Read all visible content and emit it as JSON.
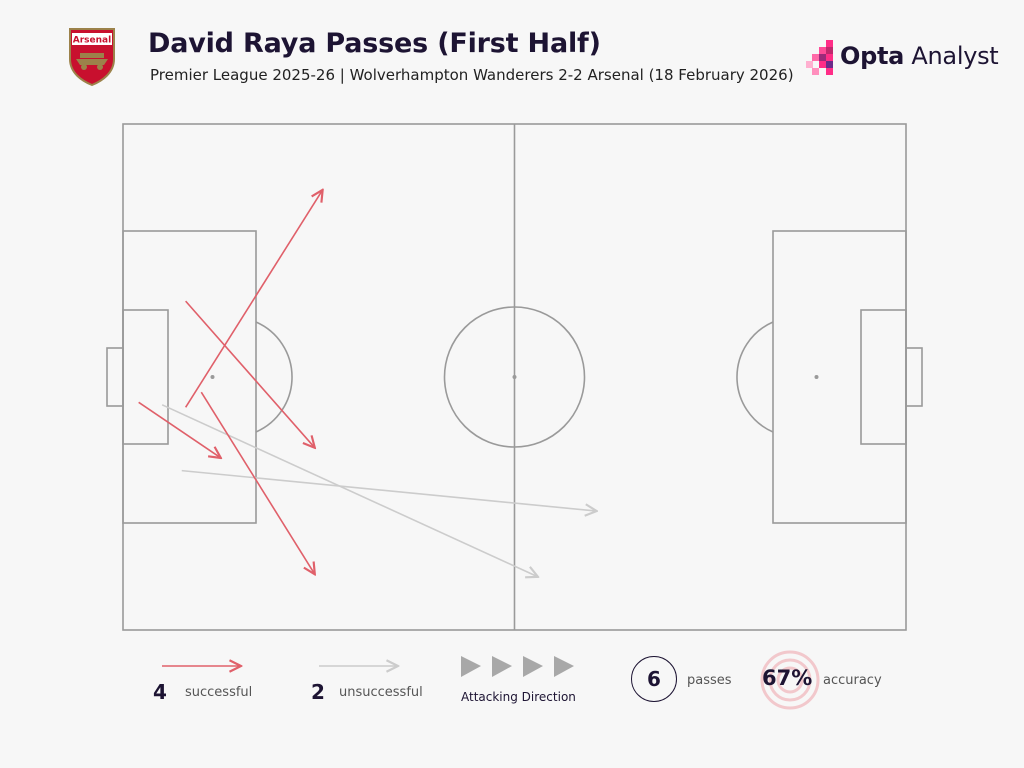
{
  "header": {
    "title": "David Raya Passes (First Half)",
    "subtitle": "Premier League 2025-26 | Wolverhampton Wanderers 2-2 Arsenal (18 February 2026)",
    "crest_text": "Arsenal",
    "brand_bold": "Opta",
    "brand_light": " Analyst"
  },
  "colors": {
    "successful": "#e0606a",
    "unsuccessful": "#cccccc",
    "pitch_lines": "#9a9a9a",
    "text": "#1d1433"
  },
  "chart_data": {
    "type": "scatter",
    "pitch_length": 100,
    "pitch_width": 100,
    "attacking_direction": "left-to-right",
    "passes": [
      {
        "outcome": "successful",
        "start": [
          8,
          44
        ],
        "end": [
          25.5,
          87
        ]
      },
      {
        "outcome": "successful",
        "start": [
          8,
          65
        ],
        "end": [
          24.5,
          36
        ]
      },
      {
        "outcome": "successful",
        "start": [
          2,
          45
        ],
        "end": [
          12.5,
          34
        ]
      },
      {
        "outcome": "successful",
        "start": [
          10,
          47
        ],
        "end": [
          24.5,
          11
        ]
      },
      {
        "outcome": "unsuccessful",
        "start": [
          7.5,
          31.5
        ],
        "end": [
          60.5,
          23.5
        ]
      },
      {
        "outcome": "unsuccessful",
        "start": [
          5,
          44.5
        ],
        "end": [
          53,
          10.5
        ]
      }
    ]
  },
  "legend": {
    "successful_count": "4",
    "successful_label": "successful",
    "unsuccessful_count": "2",
    "unsuccessful_label": "unsuccessful",
    "direction_label": "Attacking Direction",
    "passes_count": "6",
    "passes_label": "passes",
    "accuracy_value": "67%",
    "accuracy_label": "accuracy"
  }
}
